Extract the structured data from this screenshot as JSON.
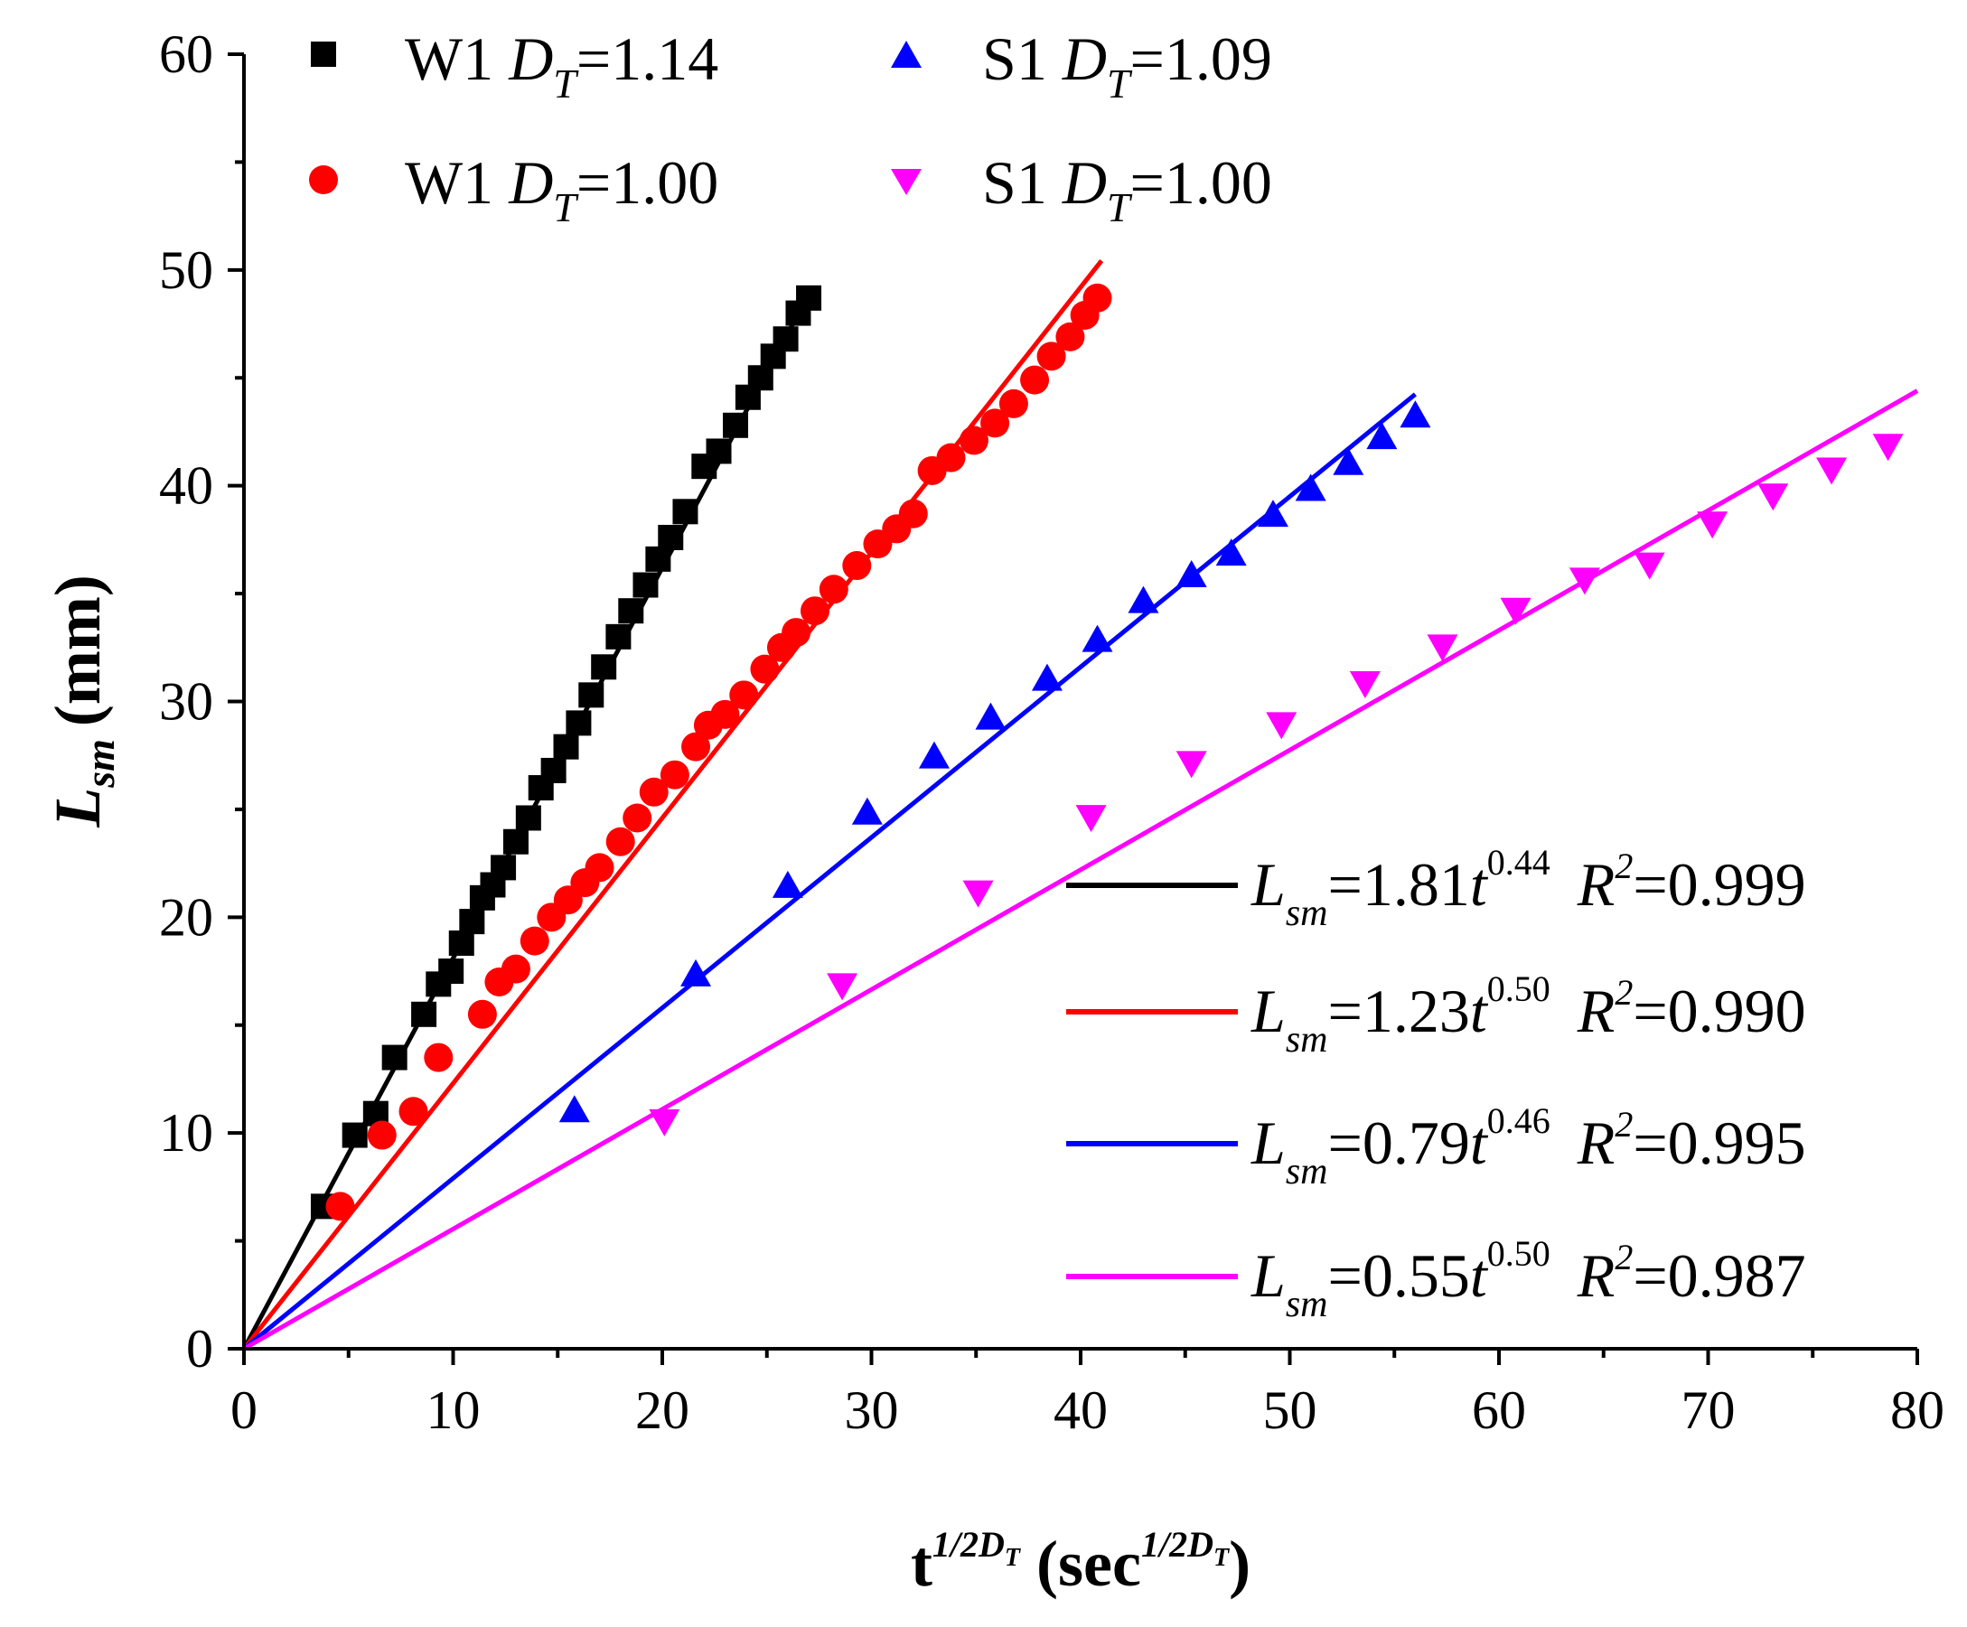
{
  "chart_data": {
    "type": "scatter",
    "title": "",
    "xlabel": {
      "base": "t",
      "sup": "1/2D",
      "sup_sub": "T",
      "paren_open": "(",
      "unit": "sec",
      "unit_sup": "1/2D",
      "unit_sup_sub": "T",
      "paren_close": ")"
    },
    "ylabel": {
      "base": "L",
      "sub": "sm",
      "unit": "(mm)"
    },
    "xlim": [
      0,
      80
    ],
    "ylim": [
      0,
      60
    ],
    "x_ticks": [
      0,
      10,
      20,
      30,
      40,
      50,
      60,
      70,
      80
    ],
    "y_ticks": [
      0,
      10,
      20,
      30,
      40,
      50,
      60
    ],
    "x_tick_labels": [
      "0",
      "10",
      "20",
      "30",
      "40",
      "50",
      "60",
      "70",
      "80"
    ],
    "y_tick_labels": [
      "0",
      "10",
      "20",
      "30",
      "40",
      "50",
      "60"
    ],
    "grid": false,
    "series": [
      {
        "name": "W1 D_T=1.14",
        "label": {
          "prefix": "W1 ",
          "var": "D",
          "var_sub": "T",
          "value": "=1.14"
        },
        "marker": "square",
        "color": "#000000",
        "x": [
          3.8,
          5.3,
          6.3,
          7.2,
          8.6,
          9.3,
          9.9,
          10.4,
          10.9,
          11.4,
          11.9,
          12.4,
          13.0,
          13.6,
          14.2,
          14.8,
          15.4,
          16.0,
          16.6,
          17.2,
          17.9,
          18.5,
          19.2,
          19.8,
          20.4,
          21.1,
          22.0,
          22.7,
          23.5,
          24.1,
          24.7,
          25.3,
          25.9,
          26.5,
          27.0
        ],
        "y": [
          6.6,
          9.9,
          10.9,
          13.5,
          15.5,
          16.9,
          17.5,
          18.8,
          19.8,
          20.9,
          21.5,
          22.3,
          23.5,
          24.6,
          26.0,
          26.8,
          27.9,
          29.0,
          30.3,
          31.6,
          33.0,
          34.2,
          35.4,
          36.6,
          37.6,
          38.8,
          40.9,
          41.6,
          42.8,
          44.1,
          45.0,
          46.0,
          46.8,
          48.0,
          48.7
        ]
      },
      {
        "name": "W1 D_T=1.00",
        "label": {
          "prefix": "W1 ",
          "var": "D",
          "var_sub": "T",
          "value": "=1.00"
        },
        "marker": "circle",
        "color": "#ff0000",
        "x": [
          4.6,
          6.6,
          8.1,
          9.3,
          11.4,
          12.2,
          13.0,
          13.9,
          14.7,
          15.5,
          16.3,
          17.0,
          18.0,
          18.8,
          19.6,
          20.6,
          21.6,
          22.2,
          23.0,
          23.9,
          24.9,
          25.7,
          26.4,
          27.3,
          28.2,
          29.3,
          30.3,
          31.2,
          32.0,
          32.9,
          33.8,
          34.9,
          35.9,
          36.8,
          37.8,
          38.6,
          39.5,
          40.2,
          40.8
        ],
        "y": [
          6.6,
          9.9,
          11.0,
          13.5,
          15.5,
          17.0,
          17.6,
          18.9,
          20.0,
          20.8,
          21.6,
          22.3,
          23.5,
          24.6,
          25.8,
          26.6,
          27.9,
          28.9,
          29.4,
          30.3,
          31.5,
          32.5,
          33.2,
          34.2,
          35.2,
          36.3,
          37.3,
          38.0,
          38.7,
          40.7,
          41.3,
          42.1,
          42.9,
          43.8,
          44.9,
          46.0,
          46.9,
          47.9,
          48.7
        ]
      },
      {
        "name": "S1 D_T=1.09",
        "label": {
          "prefix": "S1 ",
          "var": "D",
          "var_sub": "T",
          "value": "=1.09"
        },
        "marker": "triangle-up",
        "color": "#0000ff",
        "x": [
          15.8,
          21.6,
          26.0,
          29.8,
          33.0,
          35.7,
          38.4,
          40.8,
          43.0,
          45.3,
          47.2,
          49.2,
          51.0,
          52.8,
          54.4,
          56.0
        ],
        "y": [
          11.0,
          17.3,
          21.4,
          24.8,
          27.4,
          29.2,
          31.0,
          32.8,
          34.6,
          35.8,
          36.8,
          38.6,
          39.8,
          41.0,
          42.2,
          43.2
        ]
      },
      {
        "name": "S1 D_T=1.00",
        "label": {
          "prefix": "S1 ",
          "var": "D",
          "var_sub": "T",
          "value": "=1.00"
        },
        "marker": "triangle-down",
        "color": "#ff00ff",
        "x": [
          20.1,
          28.6,
          35.1,
          40.5,
          45.3,
          49.6,
          53.6,
          57.3,
          60.8,
          64.1,
          67.2,
          70.2,
          73.1,
          75.9,
          78.6
        ],
        "y": [
          10.6,
          16.9,
          21.2,
          24.7,
          27.2,
          29.0,
          30.9,
          32.6,
          34.3,
          35.7,
          36.4,
          38.3,
          39.6,
          40.8,
          41.9
        ]
      }
    ],
    "fits": [
      {
        "series": "W1 D_T=1.14",
        "color": "#000000",
        "slope": 1.81,
        "x_end": 27.0,
        "label": {
          "var": "L",
          "var_sub": "sm",
          "coef": "=1.81",
          "t": "t",
          "exp": "0.44",
          "r": "R",
          "r_sup": "2",
          "r_val": "=0.999"
        }
      },
      {
        "series": "W1 D_T=1.00",
        "color": "#ff0000",
        "slope": 1.23,
        "x_end": 41.0,
        "label": {
          "var": "L",
          "var_sub": "sm",
          "coef": "=1.23",
          "t": "t",
          "exp": "0.50",
          "r": "R",
          "r_sup": "2",
          "r_val": "=0.990"
        }
      },
      {
        "series": "S1 D_T=1.09",
        "color": "#0000ff",
        "slope": 0.79,
        "x_end": 56.0,
        "label": {
          "var": "L",
          "var_sub": "sm",
          "coef": "=0.79",
          "t": "t",
          "exp": "0.46",
          "r": "R",
          "r_sup": "2",
          "r_val": "=0.995"
        }
      },
      {
        "series": "S1 D_T=1.00",
        "color": "#ff00ff",
        "slope": 0.555,
        "x_end": 80.0,
        "label": {
          "var": "L",
          "var_sub": "sm",
          "coef": "=0.55",
          "t": "t",
          "exp": "0.50",
          "r": "R",
          "r_sup": "2",
          "r_val": "=0.987"
        }
      }
    ],
    "legend_placement": [
      "top",
      "bottom-right"
    ]
  }
}
